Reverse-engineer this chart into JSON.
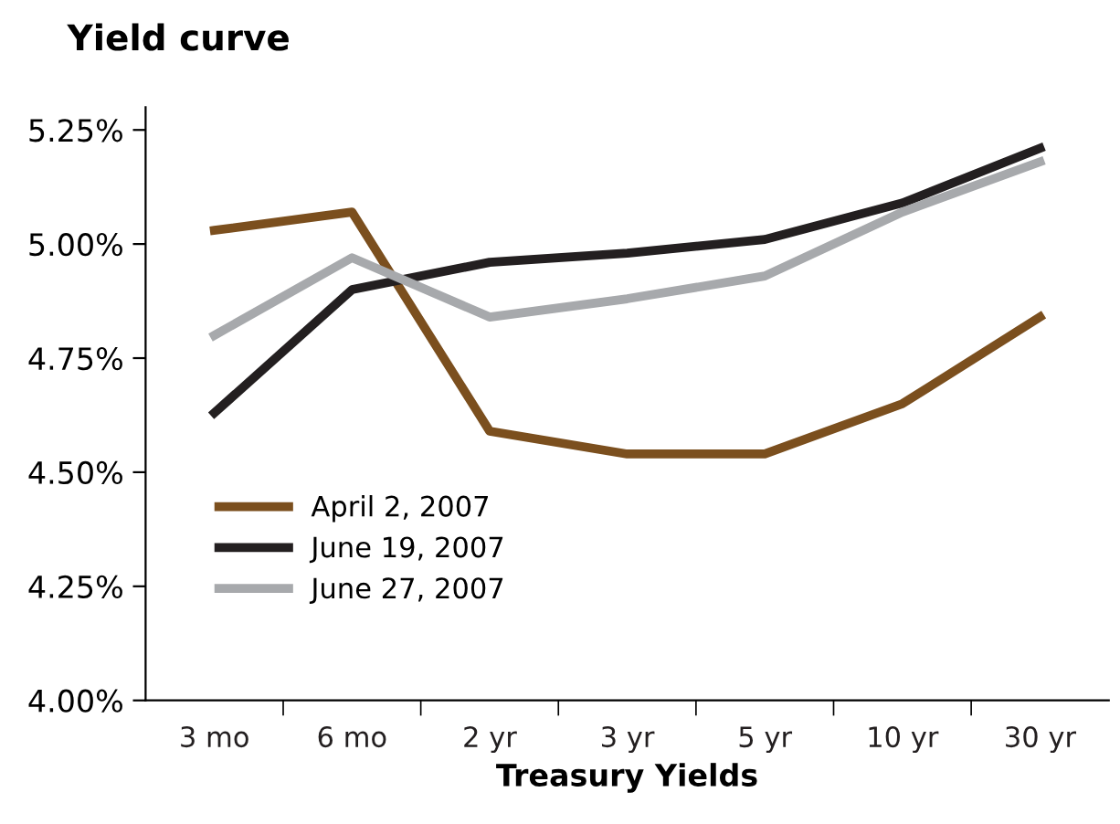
{
  "chart_data": {
    "type": "line",
    "title": "Yield curve",
    "xlabel": "Treasury Yields",
    "categories": [
      "3 mo",
      "6 mo",
      "2 yr",
      "3 yr",
      "5 yr",
      "10 yr",
      "30 yr"
    ],
    "series": [
      {
        "name": "April 2, 2007",
        "color": "#7b4f1e",
        "values": [
          5.03,
          5.07,
          4.59,
          4.54,
          4.54,
          4.65,
          4.84
        ]
      },
      {
        "name": "June 19, 2007",
        "color": "#231f20",
        "values": [
          4.63,
          4.9,
          4.96,
          4.98,
          5.01,
          5.09,
          5.21
        ]
      },
      {
        "name": "June 27, 2007",
        "color": "#a7a9ac",
        "values": [
          4.8,
          4.97,
          4.84,
          4.88,
          4.93,
          5.07,
          5.18
        ]
      }
    ],
    "ylim": [
      4.0,
      5.3
    ],
    "yticks": [
      {
        "value": 4.0,
        "label": "4.00%"
      },
      {
        "value": 4.25,
        "label": "4.25%"
      },
      {
        "value": 4.5,
        "label": "4.50%"
      },
      {
        "value": 4.75,
        "label": "4.75%"
      },
      {
        "value": 5.0,
        "label": "5.00%"
      },
      {
        "value": 5.25,
        "label": "5.25%"
      }
    ],
    "grid": false,
    "legend": "bottom left",
    "marker": "none",
    "line_style": "solid"
  }
}
